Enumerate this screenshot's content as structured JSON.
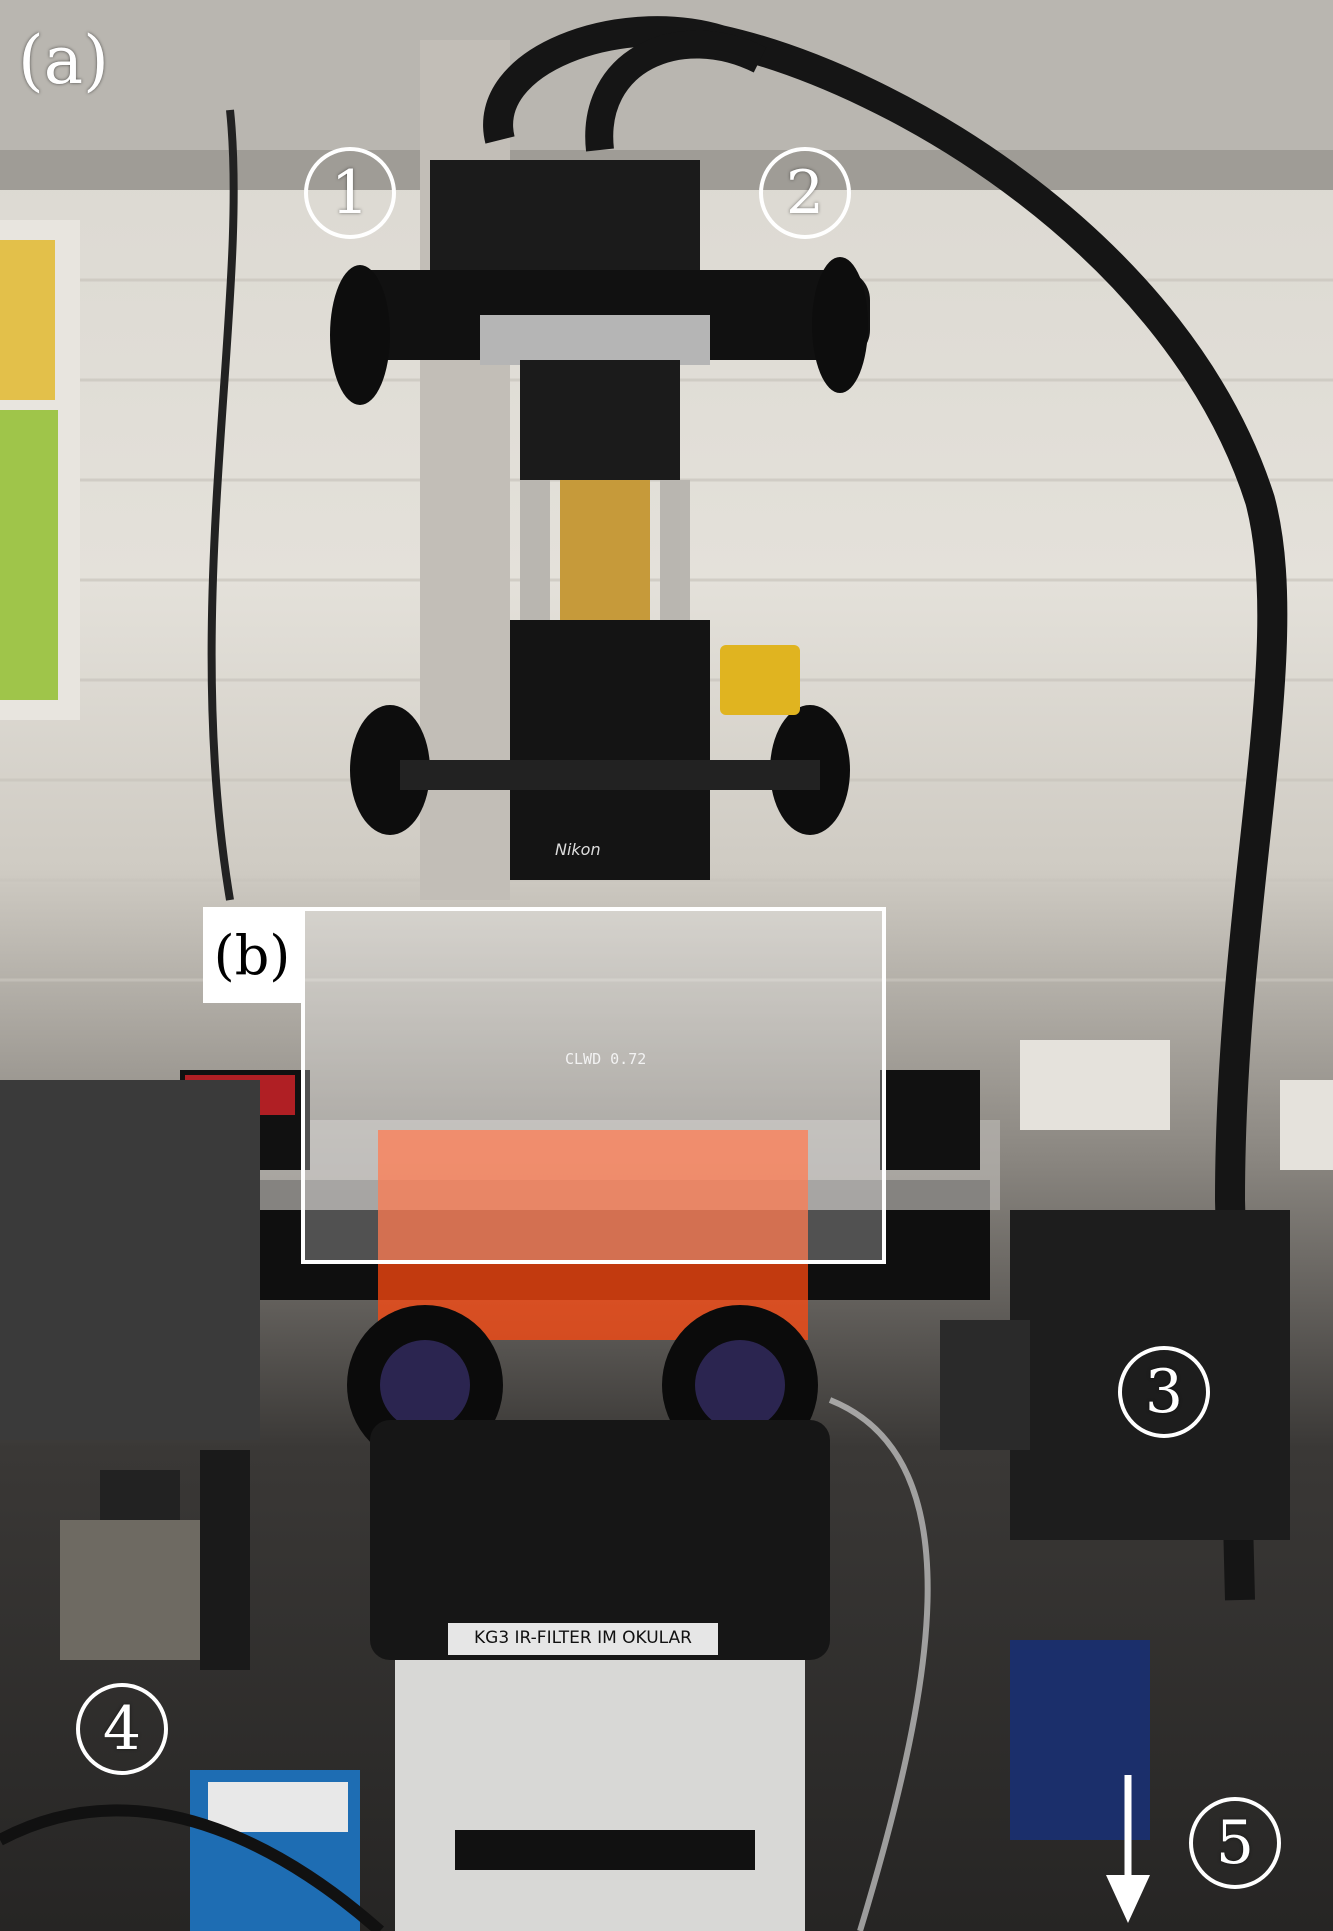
{
  "panel_labels": {
    "a": "(a)",
    "b": "(b)"
  },
  "markers": {
    "m1": "1",
    "m2": "2",
    "m3": "3",
    "m4": "4",
    "m5": "5"
  },
  "equipment_text": {
    "nikon": "Nikon",
    "objective": "CLWD 0.72",
    "filter_plate": "KG3 IR-FILTER IM OKULAR"
  }
}
